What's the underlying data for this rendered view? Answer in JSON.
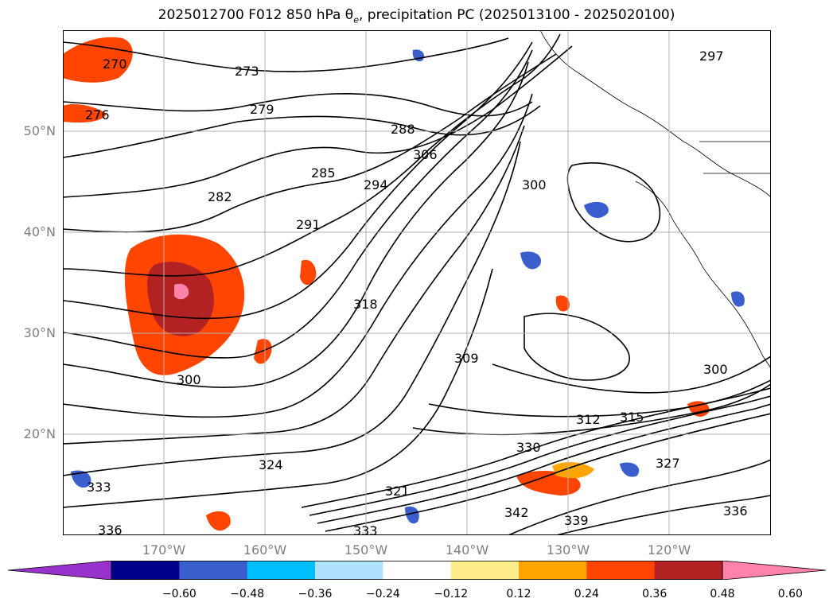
{
  "title": {
    "prefix": "2025012700 F012 850 hPa ",
    "theta": "θ",
    "theta_sub": "e",
    "suffix": ", precipitation PC (2025013100 - 2025020100)"
  },
  "map": {
    "lat_labels": [
      "50°N",
      "40°N",
      "30°N",
      "20°N"
    ],
    "lon_labels": [
      "170°W",
      "160°W",
      "150°W",
      "140°W",
      "130°W",
      "120°W"
    ],
    "contour_labels": [
      "270",
      "273",
      "276",
      "279",
      "282",
      "285",
      "288",
      "291",
      "294",
      "297",
      "300",
      "306",
      "309",
      "312",
      "315",
      "318",
      "321",
      "324",
      "327",
      "330",
      "333",
      "336",
      "339",
      "342"
    ],
    "colors": {
      "contour": "#000000",
      "grid": "#b0b0b0",
      "coast": "#000000"
    }
  },
  "colorbar": {
    "tick_labels": [
      "−0.60",
      "−0.48",
      "−0.36",
      "−0.24",
      "−0.12",
      "0.12",
      "0.24",
      "0.36",
      "0.48",
      "0.60"
    ],
    "colors": [
      "#9932CC",
      "#00008B",
      "#3A5FCD",
      "#00BFFF",
      "#B0E2FF",
      "#FFFFFF",
      "#FFEC8B",
      "#FFA500",
      "#FF4500",
      "#B22222",
      "#FF82AB"
    ]
  }
}
